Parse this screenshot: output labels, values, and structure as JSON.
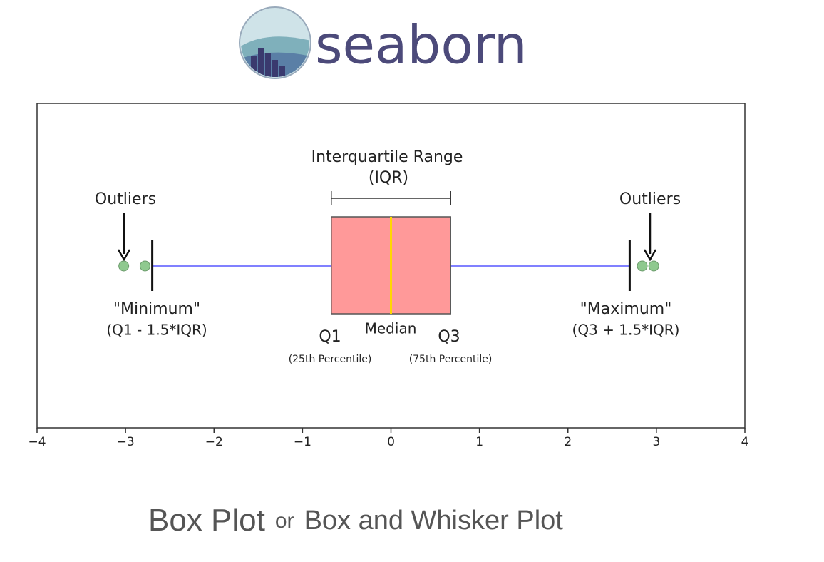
{
  "header": {
    "logo_text": "seaborn"
  },
  "chart_data": {
    "type": "box",
    "xlim": [
      -4,
      4
    ],
    "xticks": [
      {
        "value": -4,
        "label": "−4"
      },
      {
        "value": -3,
        "label": "−3"
      },
      {
        "value": -2,
        "label": "−2"
      },
      {
        "value": -1,
        "label": "−1"
      },
      0,
      1,
      2,
      3,
      4
    ],
    "box": {
      "whisker_low": -2.698,
      "q1": -0.6745,
      "median": 0,
      "q3": 0.6745,
      "whisker_high": 2.698,
      "color": "#ff9999",
      "median_color": "#ffd700",
      "whisker_color": "#8080ff"
    },
    "outliers": {
      "values": [
        -3.02,
        -2.78,
        2.84,
        2.97
      ],
      "color": "#8fc98f"
    },
    "annotations": [
      "Interquartile Range",
      "(IQR)",
      "Outliers",
      "Outliers",
      "\"Minimum\"",
      "(Q1 - 1.5*IQR)",
      "Q1",
      "Median",
      "Q3",
      "(25th Percentile)",
      "(75th Percentile)",
      "\"Maximum\"",
      "(Q3 + 1.5*IQR)"
    ]
  },
  "footer": {
    "main": "Box Plot",
    "connector": "or",
    "alt": "Box and Whisker Plot"
  }
}
